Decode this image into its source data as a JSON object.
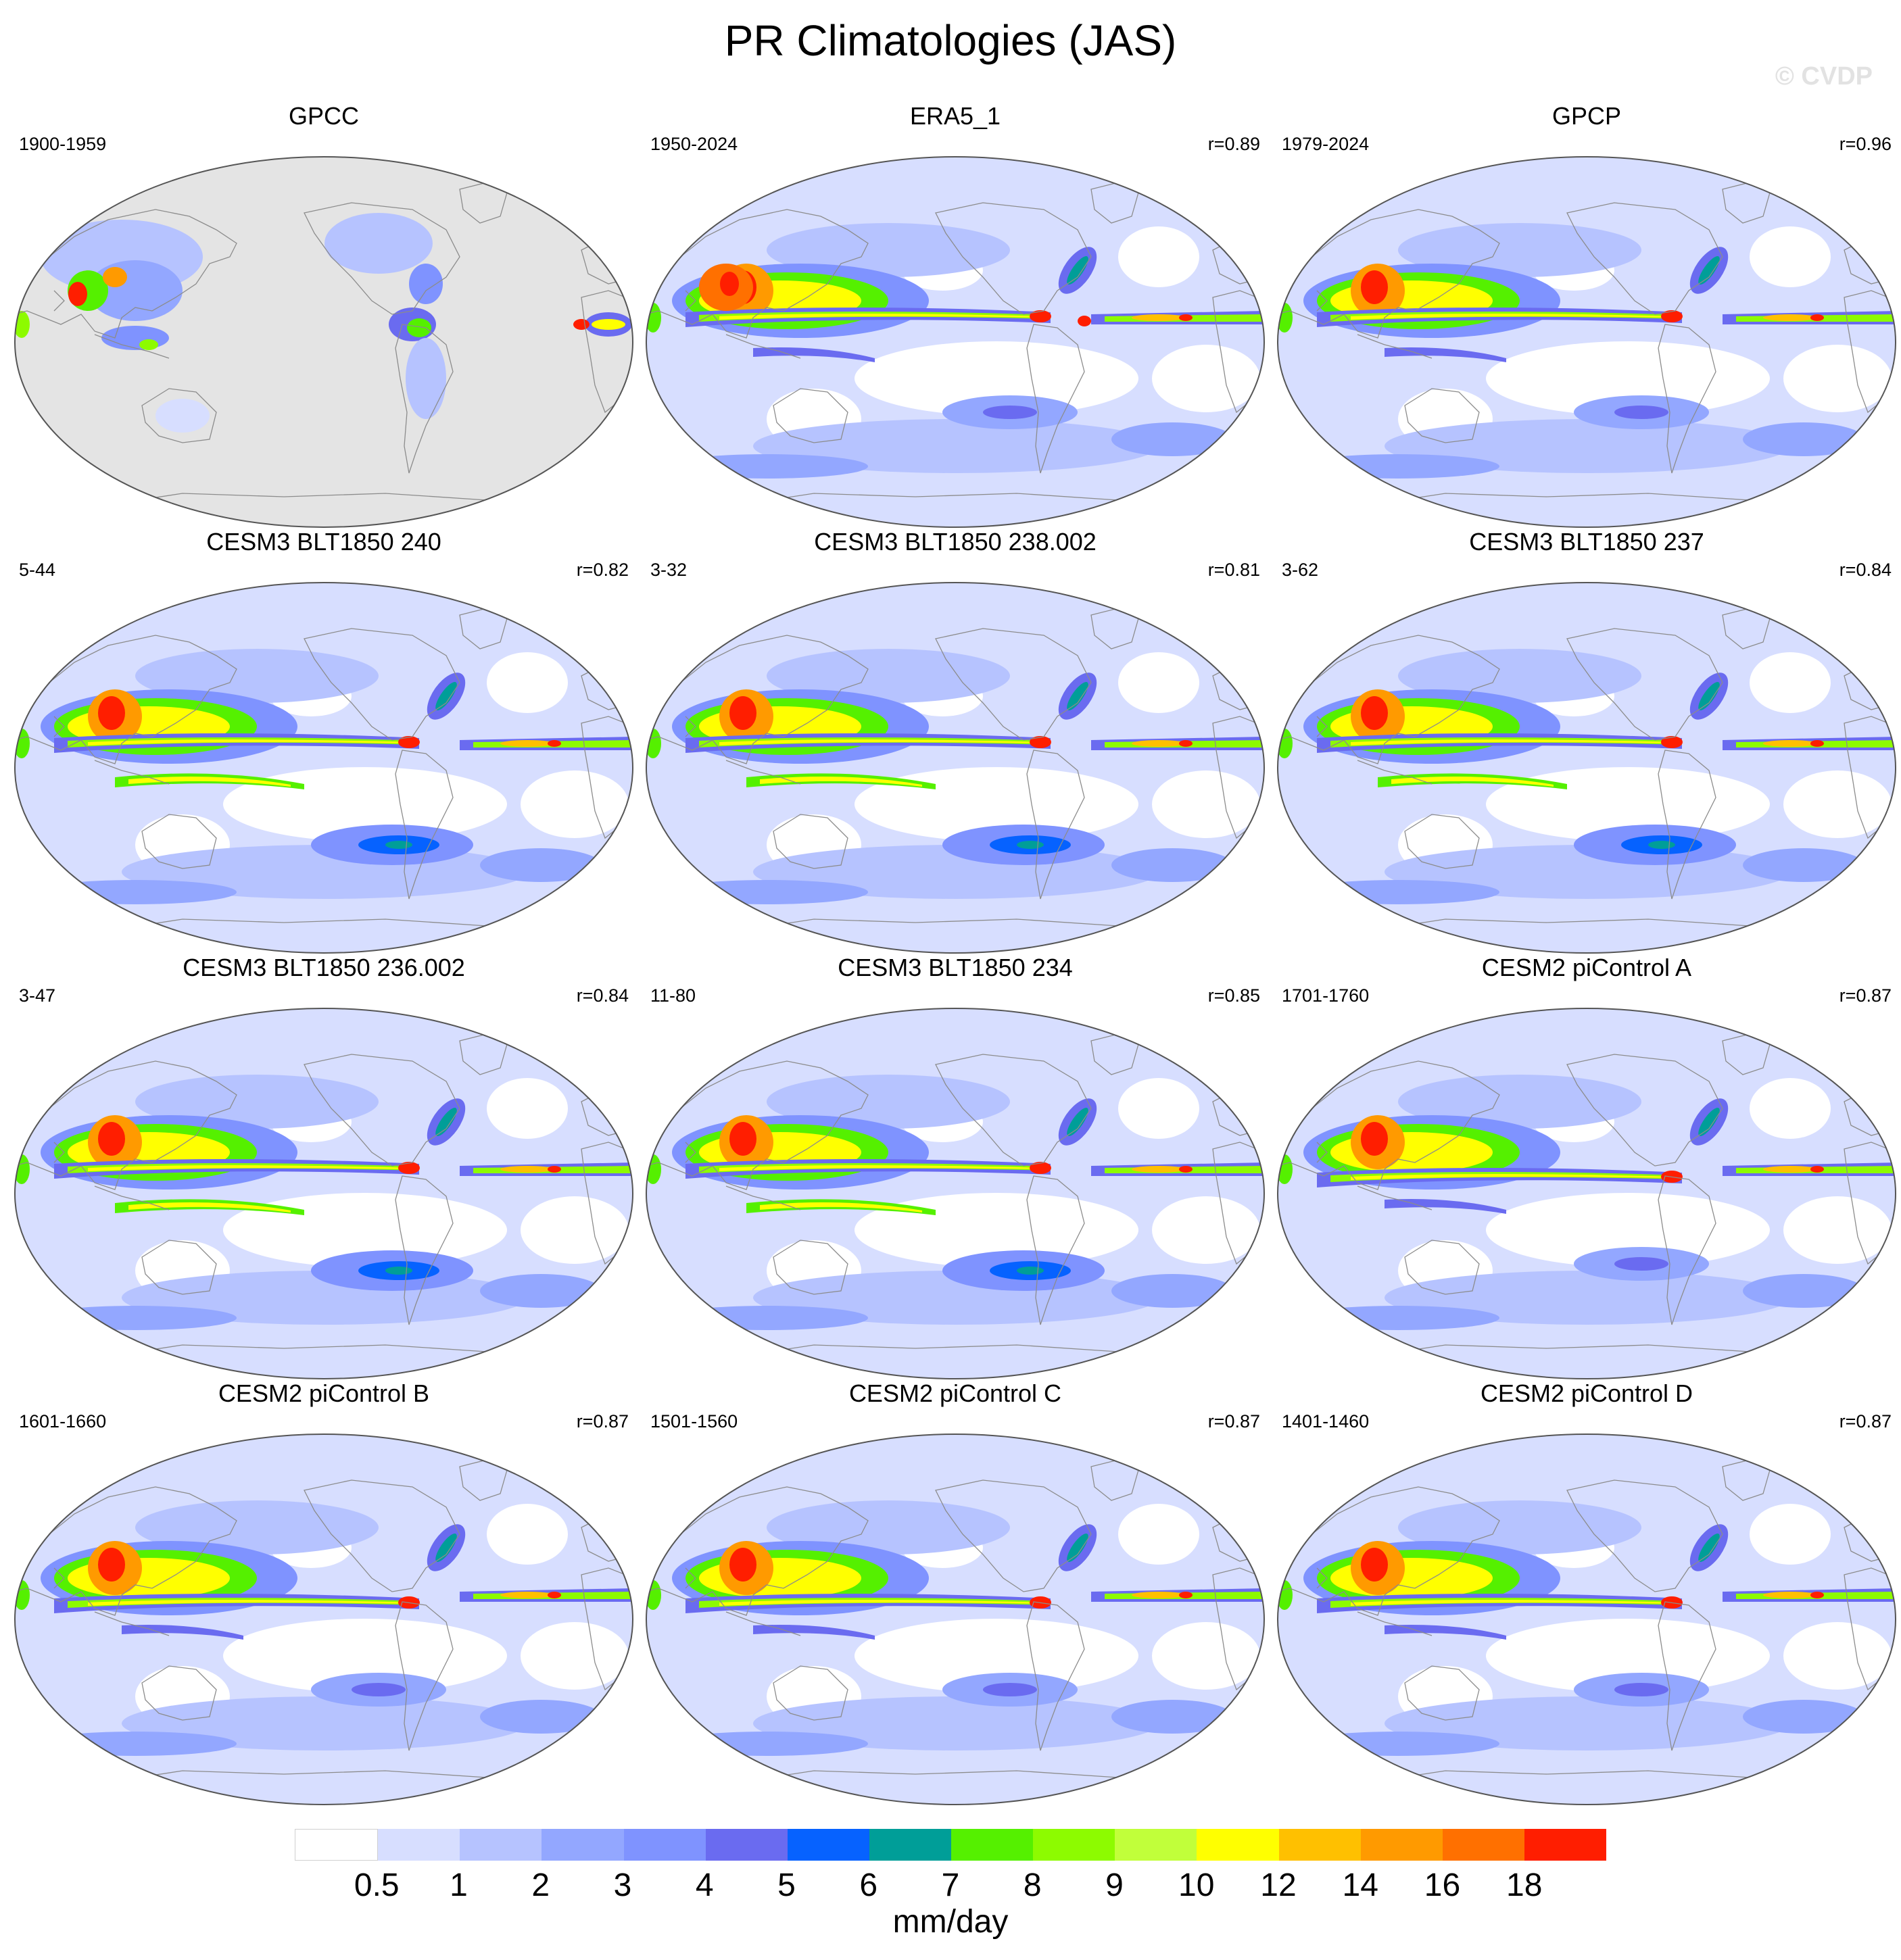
{
  "title": "PR Climatologies (JAS)",
  "watermark": "© CVDP",
  "panels": [
    {
      "title": "GPCC",
      "period": "1900-1959",
      "corr": "",
      "style": "obs-land"
    },
    {
      "title": "ERA5_1",
      "period": "1950-2024",
      "corr": "r=0.89",
      "style": "era5"
    },
    {
      "title": "GPCP",
      "period": "1979-2024",
      "corr": "r=0.96",
      "style": "obs"
    },
    {
      "title": "CESM3 BLT1850 240",
      "period": "5-44",
      "corr": "r=0.82",
      "style": "cesm3"
    },
    {
      "title": "CESM3 BLT1850 238.002",
      "period": "3-32",
      "corr": "r=0.81",
      "style": "cesm3"
    },
    {
      "title": "CESM3 BLT1850 237",
      "period": "3-62",
      "corr": "r=0.84",
      "style": "cesm3"
    },
    {
      "title": "CESM3 BLT1850 236.002",
      "period": "3-47",
      "corr": "r=0.84",
      "style": "cesm3"
    },
    {
      "title": "CESM3 BLT1850 234",
      "period": "11-80",
      "corr": "r=0.85",
      "style": "cesm3"
    },
    {
      "title": "CESM2 piControl A",
      "period": "1701-1760",
      "corr": "r=0.87",
      "style": "cesm2"
    },
    {
      "title": "CESM2 piControl B",
      "period": "1601-1660",
      "corr": "r=0.87",
      "style": "cesm2"
    },
    {
      "title": "CESM2 piControl C",
      "period": "1501-1560",
      "corr": "r=0.87",
      "style": "cesm2"
    },
    {
      "title": "CESM2 piControl D",
      "period": "1401-1460",
      "corr": "r=0.87",
      "style": "cesm2"
    }
  ],
  "legend": {
    "units": "mm/day",
    "ticks": [
      "0.5",
      "1",
      "2",
      "3",
      "4",
      "5",
      "6",
      "7",
      "8",
      "9",
      "10",
      "12",
      "14",
      "16",
      "18"
    ],
    "colors": [
      "#ffffff",
      "#d7deff",
      "#b6c3ff",
      "#93a7ff",
      "#7f93ff",
      "#6a6bf0",
      "#0662ff",
      "#009e98",
      "#55f000",
      "#8dfb00",
      "#c1ff3a",
      "#ffff00",
      "#ffc000",
      "#ff9a00",
      "#ff7000",
      "#ff1e00"
    ]
  }
}
